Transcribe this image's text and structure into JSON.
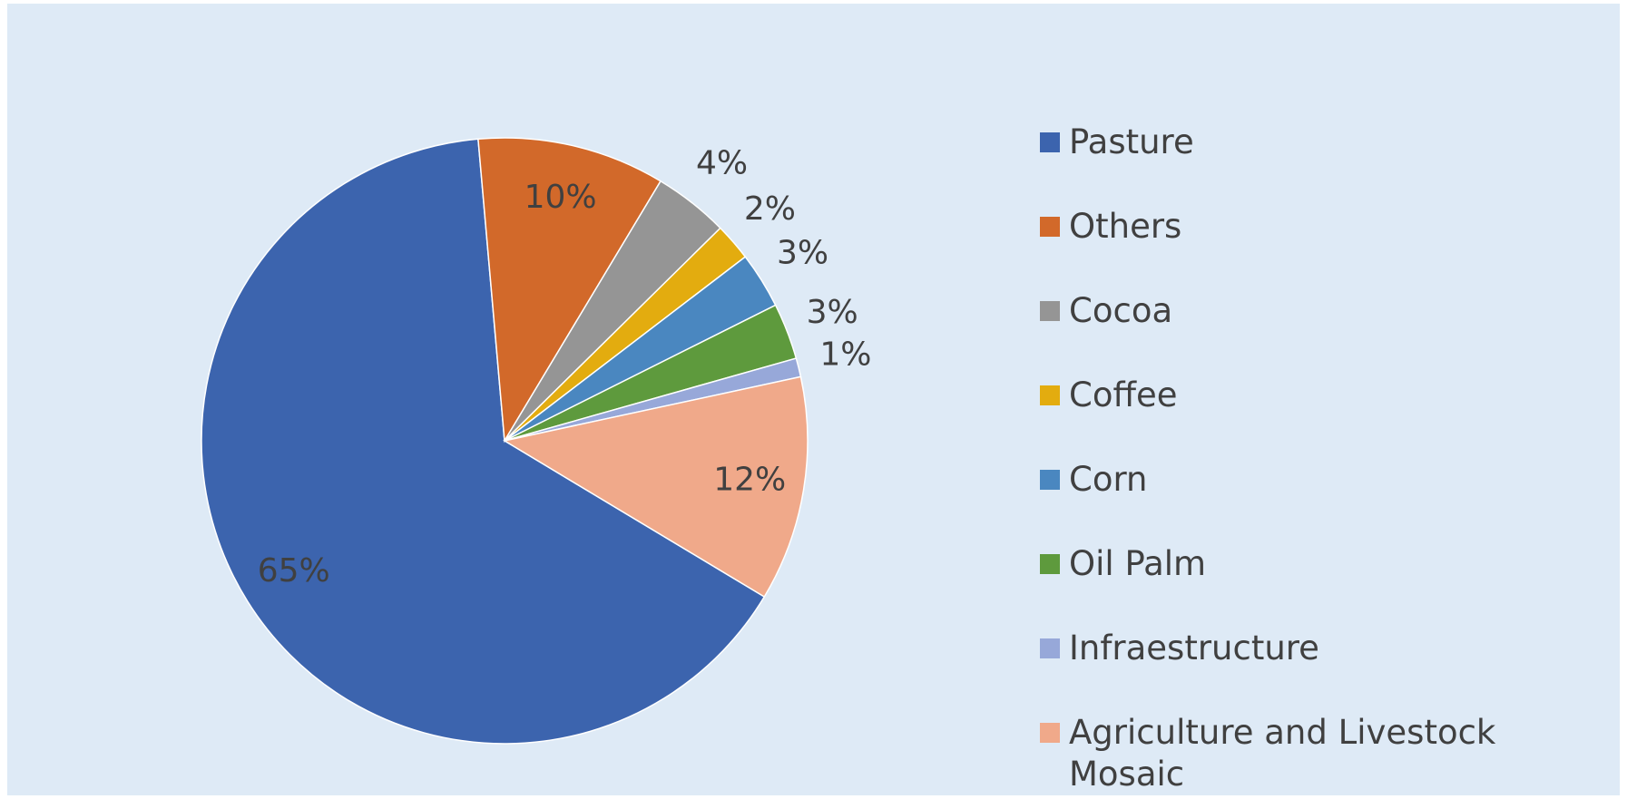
{
  "chart_data": {
    "type": "pie",
    "categories": [
      "Pasture",
      "Others",
      "Cocoa",
      "Coffee",
      "Corn",
      "Oil Palm",
      "Infraestructure",
      "Agriculture and Livestock Mosaic"
    ],
    "values": [
      65,
      10,
      4,
      2,
      3,
      3,
      1,
      12
    ],
    "value_labels": [
      "65%",
      "10%",
      "4%",
      "2%",
      "3%",
      "3%",
      "1%",
      "12%"
    ],
    "colors": [
      "#3c64ae",
      "#d2692a",
      "#959595",
      "#e3ac0f",
      "#4a87c0",
      "#5e9a3d",
      "#97a8d9",
      "#f0a98a"
    ],
    "start_angle": 121,
    "legend": "right"
  }
}
